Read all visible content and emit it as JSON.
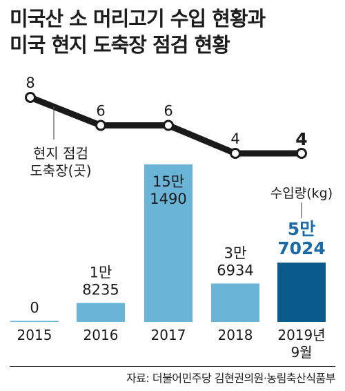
{
  "title": {
    "line1": "미국산 소 머리고기 수입 현황과",
    "line2": "미국 현지 도축장 점검 현황"
  },
  "source": "자료: 더불어민주당 김현권의원·농림축산식품부",
  "colors": {
    "bar": "#6ab4d8",
    "bar_highlight": "#0a5a8c",
    "label_highlight": "#1b6aa5",
    "line": "#1a1a1a",
    "marker_fill": "#ffffff"
  },
  "chart_data": [
    {
      "type": "line",
      "name": "현지 점검 도축장(곳)",
      "label_lines": [
        "현지 점검",
        "도축장(곳)"
      ],
      "categories": [
        "2015",
        "2016",
        "2017",
        "2018",
        "2019년 9월"
      ],
      "values": [
        8,
        6,
        6,
        4,
        4
      ],
      "value_labels": [
        "8",
        "6",
        "6",
        "4",
        "4"
      ]
    },
    {
      "type": "bar",
      "name": "수입량(kg)",
      "categories": [
        "2015",
        "2016",
        "2017",
        "2018",
        "2019년 9월"
      ],
      "category_labels": [
        [
          "2015"
        ],
        [
          "2016"
        ],
        [
          "2017"
        ],
        [
          "2018"
        ],
        [
          "2019년",
          "9월"
        ]
      ],
      "values": [
        0,
        18235,
        151490,
        36934,
        57024
      ],
      "value_labels": [
        [
          "0"
        ],
        [
          "1만",
          "8235"
        ],
        [
          "15만",
          "1490"
        ],
        [
          "3만",
          "6934"
        ],
        [
          "5만",
          "7024"
        ]
      ],
      "highlight_index": 4
    }
  ]
}
